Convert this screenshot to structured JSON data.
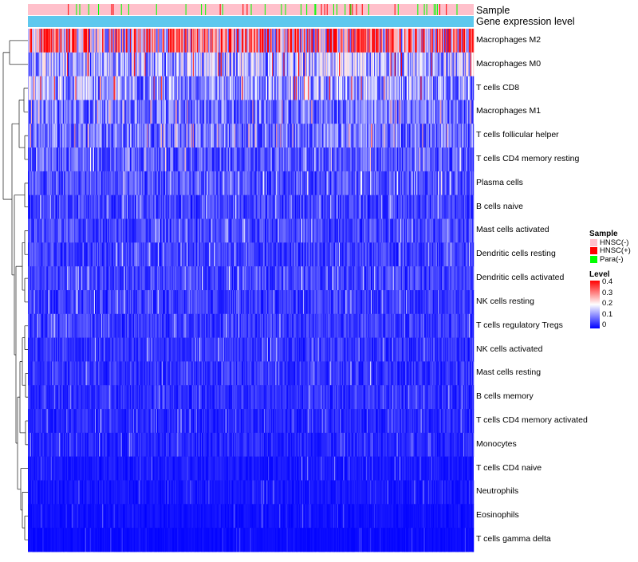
{
  "chart_data": {
    "type": "heatmap",
    "title": "",
    "annotation_tracks": [
      {
        "name": "Sample",
        "legend": [
          "HNSC(-)",
          "HNSC(+)",
          "Para(-)"
        ]
      },
      {
        "name": "Gene expression level"
      }
    ],
    "rows": [
      "Macrophages M2",
      "Macrophages M0",
      "T cells CD8",
      "Macrophages M1",
      "T cells follicular helper",
      "T cells CD4 memory resting",
      "Plasma cells",
      "B cells naive",
      "Mast cells activated",
      "Dendritic cells resting",
      "Dendritic cells activated",
      "NK cells resting",
      "T cells regulatory  Tregs",
      "NK cells activated",
      "Mast cells resting",
      "B cells memory",
      "T cells CD4 memory activated",
      "Monocytes",
      "T cells CD4 naive",
      "Neutrophils",
      "Eosinophils",
      "T cells gamma delta"
    ],
    "row_mean_level": [
      0.26,
      0.13,
      0.12,
      0.09,
      0.09,
      0.07,
      0.06,
      0.05,
      0.055,
      0.05,
      0.05,
      0.045,
      0.045,
      0.04,
      0.04,
      0.035,
      0.03,
      0.03,
      0.02,
      0.018,
      0.012,
      0.008
    ],
    "n_samples": 546,
    "color_scale": {
      "min": 0,
      "max": 0.4,
      "ticks": [
        "0.4",
        "0.3",
        "0.2",
        "0.1",
        "0"
      ]
    },
    "legend": {
      "sample_title": "Sample",
      "sample_entries": [
        "HNSC(-)",
        "HNSC(+)",
        "Para(-)"
      ],
      "level_title": "Level"
    },
    "colors": {
      "low": "#0000ff",
      "mid": "#ffffff",
      "high": "#ff0000",
      "HNSC(-)": "#ffc0cb",
      "HNSC(+)": "#ff0000",
      "Para(-)": "#00ff00",
      "gene_expression_track": "#5ec8ee",
      "dendrogram": "#333333"
    }
  }
}
